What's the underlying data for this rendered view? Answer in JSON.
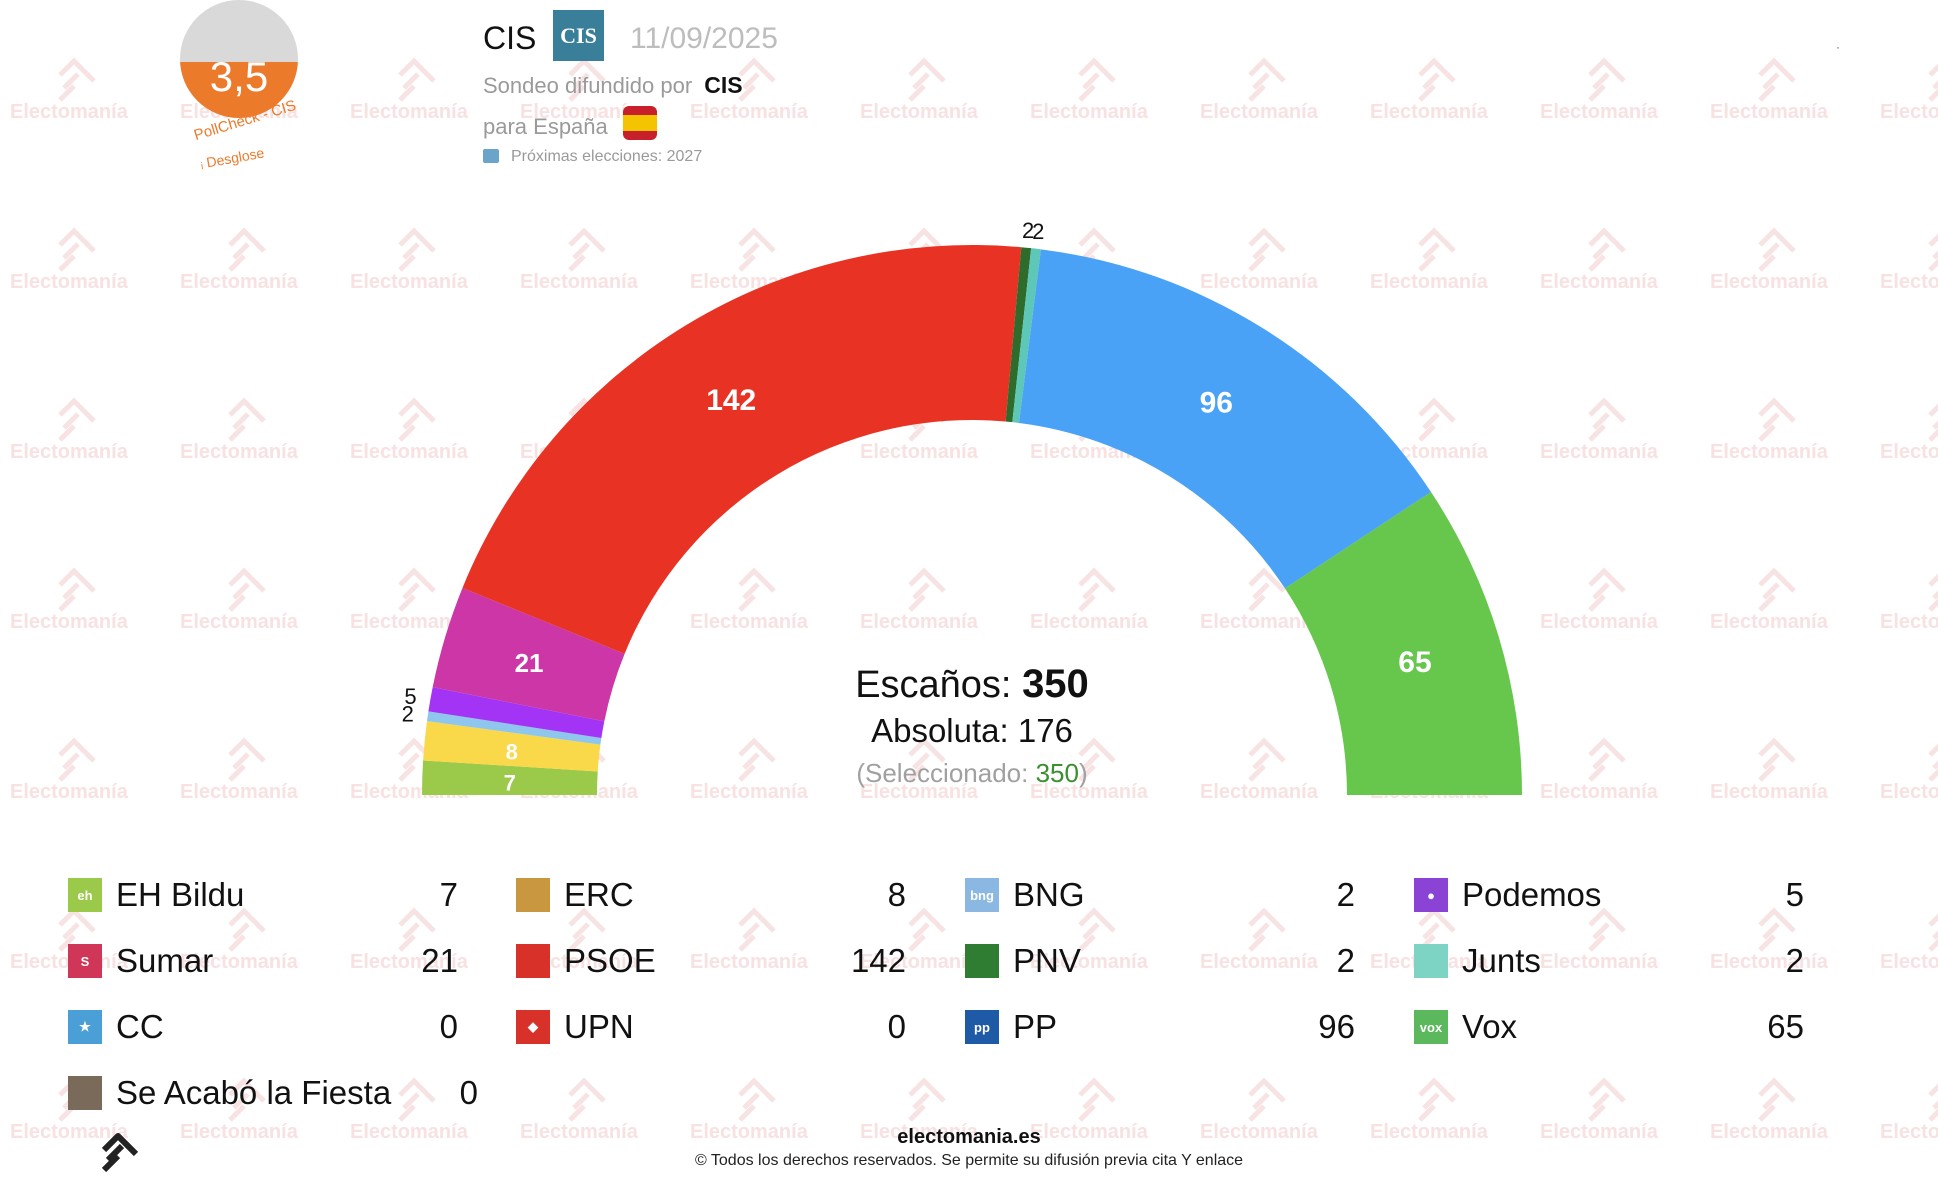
{
  "watermark_text": "Electomanía",
  "badge": {
    "score": "3,5",
    "caption": "PollCheck - CIS",
    "desglose": "Desglose"
  },
  "header": {
    "pollster": "CIS",
    "logo_text": "CIS",
    "date": "11/09/2025",
    "sondeo_label": "Sondeo difundido por",
    "sondeo_by": "CIS",
    "para": "para España",
    "proximas": "Próximas elecciones: 2027"
  },
  "summary": {
    "escanos_label": "Escaños:",
    "escanos_value": "350",
    "absoluta_label": "Absoluta:",
    "absoluta_value": "176",
    "selec_label": "(Seleccionado:",
    "selec_value": "350",
    "selec_close": ")"
  },
  "chart_data": {
    "type": "hemicycle",
    "total_seats": 350,
    "series": [
      {
        "name": "EH Bildu",
        "value": 7,
        "color": "#9bc94a"
      },
      {
        "name": "ERC",
        "value": 8,
        "color": "#f9d84a"
      },
      {
        "name": "BNG",
        "value": 2,
        "color": "#8ec6ee"
      },
      {
        "name": "Podemos",
        "value": 5,
        "color": "#a334f5"
      },
      {
        "name": "Sumar",
        "value": 21,
        "color": "#cc36a6"
      },
      {
        "name": "PSOE",
        "value": 142,
        "color": "#e83324"
      },
      {
        "name": "PNV",
        "value": 2,
        "color": "#2f6b2b"
      },
      {
        "name": "Junts",
        "value": 2,
        "color": "#5dc8b8"
      },
      {
        "name": "PP",
        "value": 96,
        "color": "#4aa2f7"
      },
      {
        "name": "Vox",
        "value": 65,
        "color": "#66c74c"
      }
    ]
  },
  "legend": [
    {
      "name": "EH Bildu",
      "value": "7",
      "color": "#9bc94a",
      "icon": "eh-bildu-icon",
      "glyph": "eh"
    },
    {
      "name": "ERC",
      "value": "8",
      "color": "#c9973f",
      "icon": "erc-icon",
      "glyph": ""
    },
    {
      "name": "BNG",
      "value": "2",
      "color": "#8ab8e3",
      "icon": "bng-icon",
      "glyph": "bng"
    },
    {
      "name": "Podemos",
      "value": "5",
      "color": "#8b43d6",
      "icon": "podemos-icon",
      "glyph": "●"
    },
    {
      "name": "Sumar",
      "value": "21",
      "color": "#cf3657",
      "icon": "sumar-icon",
      "glyph": "S"
    },
    {
      "name": "PSOE",
      "value": "142",
      "color": "#d8312a",
      "icon": "psoe-icon",
      "glyph": ""
    },
    {
      "name": "PNV",
      "value": "2",
      "color": "#2e7d32",
      "icon": "pnv-icon",
      "glyph": ""
    },
    {
      "name": "Junts",
      "value": "2",
      "color": "#7dd3c4",
      "icon": "junts-icon",
      "glyph": ""
    },
    {
      "name": "CC",
      "value": "0",
      "color": "#4a9fd6",
      "icon": "cc-icon",
      "glyph": "★"
    },
    {
      "name": "UPN",
      "value": "0",
      "color": "#d8312a",
      "icon": "upn-icon",
      "glyph": "◆"
    },
    {
      "name": "PP",
      "value": "96",
      "color": "#1f5aa6",
      "icon": "pp-icon",
      "glyph": "pp"
    },
    {
      "name": "Vox",
      "value": "65",
      "color": "#5cb85c",
      "icon": "vox-icon",
      "glyph": "vox"
    },
    {
      "name": "Se Acabó la Fiesta",
      "value": "0",
      "color": "#7a6a5a",
      "icon": "se-acabo-la-fiesta-icon",
      "glyph": ""
    }
  ],
  "footer": {
    "site": "electomania.es",
    "copyright": "© Todos los derechos reservados. Se permite su difusión previa cita Y enlace"
  }
}
